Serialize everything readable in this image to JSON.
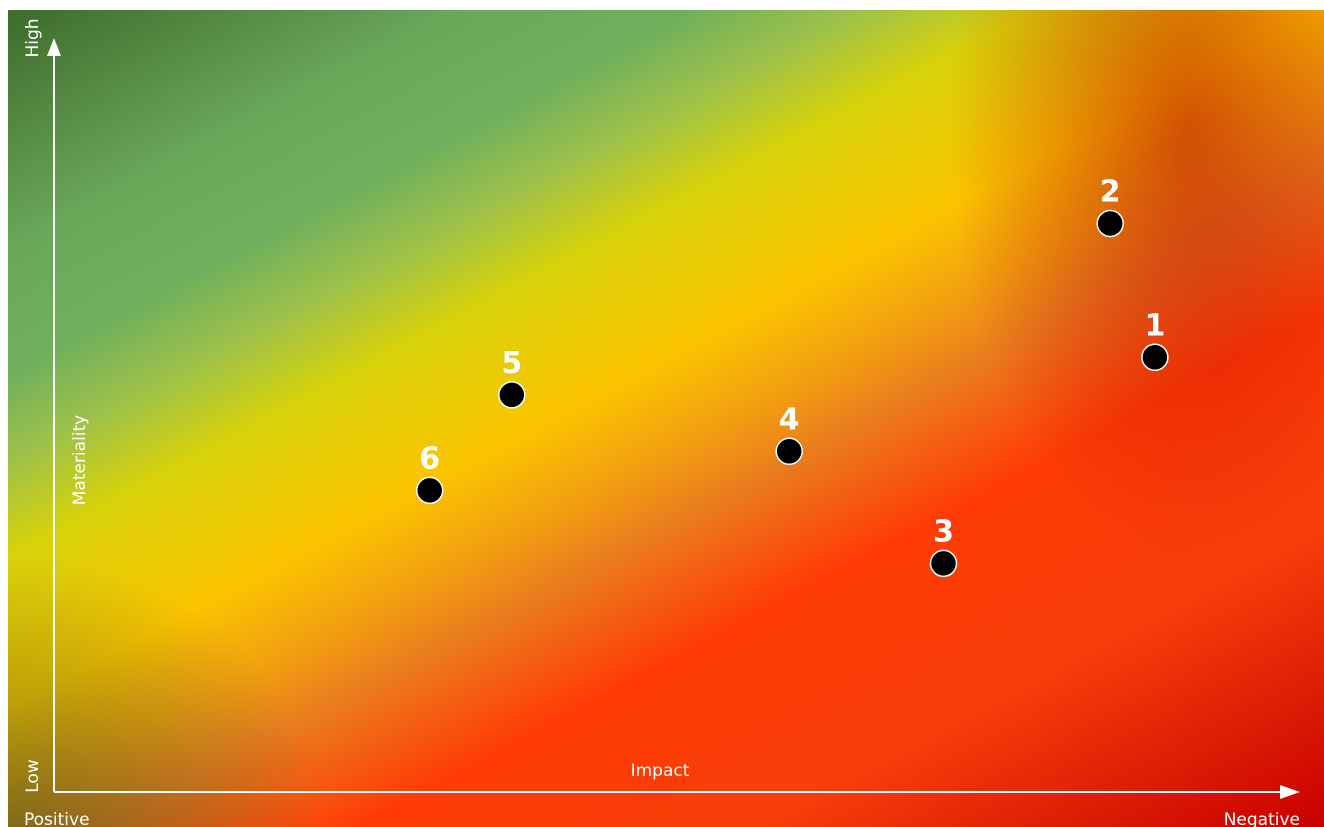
{
  "chart_data": {
    "type": "scatter",
    "title": "",
    "xlabel": "Impact",
    "ylabel": "Materiality",
    "x_ends": {
      "left": "Positive",
      "right": "Negative"
    },
    "y_ends": {
      "bottom": "Low",
      "top": "High"
    },
    "xlim": [
      0,
      100
    ],
    "ylim": [
      0,
      100
    ],
    "grid": false,
    "legend": "none",
    "background": "diagonal gradient green (positive/low) to yellow to orange to red (negative/high)",
    "colors": {
      "green": "#6aa85a",
      "yellow": "#fbc400",
      "orange": "#ea7e1e",
      "red": "#ff3c05",
      "dark_red": "#c70000",
      "point": "#000000",
      "axis": "#ffffff"
    },
    "points": [
      {
        "label": "1",
        "x": 88.5,
        "y": 57.8
      },
      {
        "label": "2",
        "x": 84.9,
        "y": 75.6
      },
      {
        "label": "3",
        "x": 71.5,
        "y": 30.4
      },
      {
        "label": "4",
        "x": 59.1,
        "y": 45.3
      },
      {
        "label": "5",
        "x": 36.8,
        "y": 52.8
      },
      {
        "label": "6",
        "x": 30.2,
        "y": 40.1
      }
    ]
  }
}
